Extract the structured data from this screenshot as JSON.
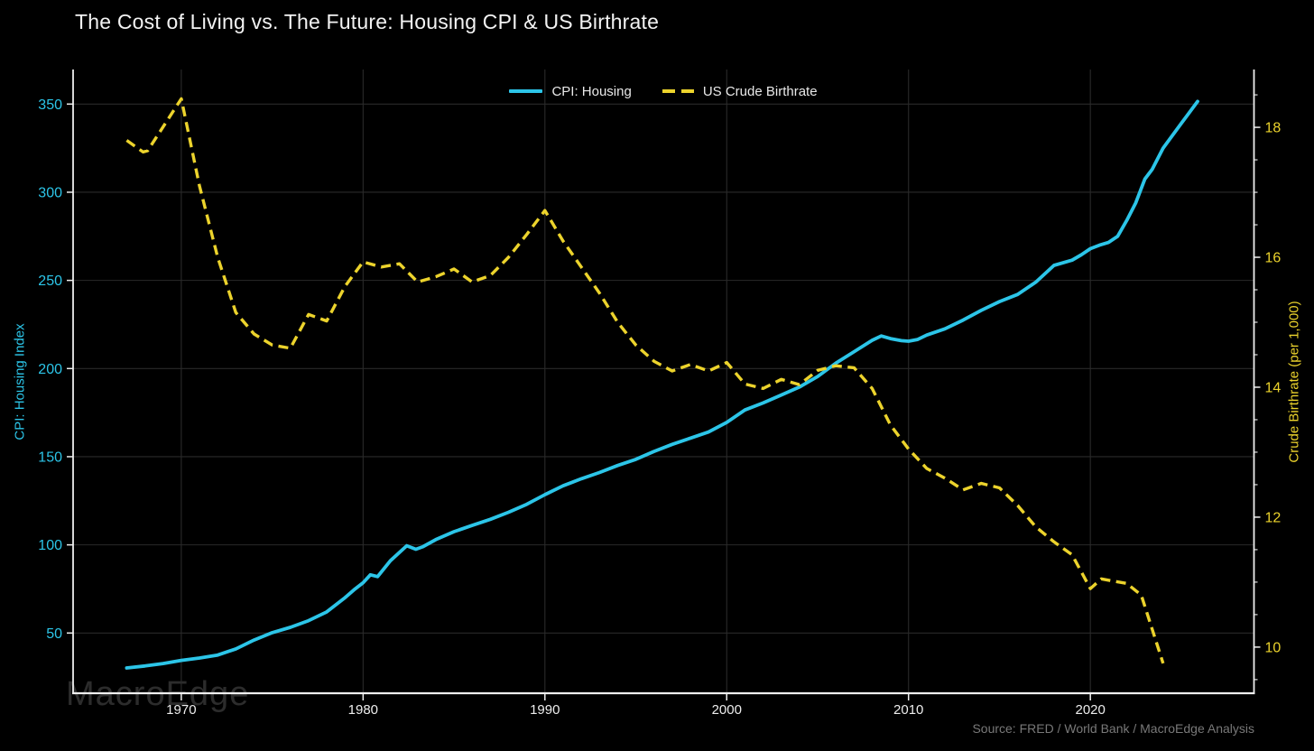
{
  "header": {
    "title": "The Cost of Living vs. The Future: Housing CPI & US Birthrate"
  },
  "footer": {
    "watermark": "MacroEdge",
    "source": "Source: FRED / World Bank / MacroEdge Analysis"
  },
  "colors": {
    "background": "#000000",
    "title": "#f3f3f3",
    "cyan": "#2cc5e8",
    "yellow": "#ecd32c",
    "grid": "#2a2a2a",
    "spine": "#efefef",
    "xtick": "#ededed",
    "legendtext": "#e9e9e9",
    "source": "#787878",
    "watermark": "#2c2c2c"
  },
  "chart_data": {
    "type": "line",
    "title": "The Cost of Living vs. The Future: Housing CPI & US Birthrate",
    "grid": true,
    "legend_position": "top-center",
    "x_range": [
      1964.05,
      2029.0
    ],
    "x_ticks": [
      1970,
      1980,
      1990,
      2000,
      2010,
      2020
    ],
    "left_axis": {
      "label": "CPI: Housing Index",
      "range": [
        15.85,
        369.6
      ],
      "ticks": [
        50,
        100,
        150,
        200,
        250,
        300,
        350
      ],
      "color": "#2cc5e8"
    },
    "right_axis": {
      "label": "Crude Birthrate (per 1,000)",
      "range": [
        9.29,
        18.89
      ],
      "ticks": [
        10,
        12,
        14,
        16,
        18
      ],
      "minor_tick_step": 0.5,
      "color": "#ecd32c"
    },
    "series": [
      {
        "name": "CPI: Housing",
        "axis": "left",
        "color": "#2cc5e8",
        "style": "solid",
        "points": [
          [
            1967,
            30.2
          ],
          [
            1968,
            31.3
          ],
          [
            1969,
            32.7
          ],
          [
            1970,
            34.5
          ],
          [
            1971,
            35.8
          ],
          [
            1972,
            37.5
          ],
          [
            1973,
            41
          ],
          [
            1974,
            46
          ],
          [
            1975,
            50.2
          ],
          [
            1976,
            53.2
          ],
          [
            1977,
            57
          ],
          [
            1978,
            62
          ],
          [
            1979,
            70
          ],
          [
            1979.5,
            74.5
          ],
          [
            1980,
            78.5
          ],
          [
            1980.4,
            83
          ],
          [
            1980.8,
            82
          ],
          [
            1981.5,
            91
          ],
          [
            1982.4,
            99.5
          ],
          [
            1982.9,
            97.5
          ],
          [
            1983.3,
            99
          ],
          [
            1984,
            103
          ],
          [
            1985,
            107.5
          ],
          [
            1986,
            111
          ],
          [
            1987,
            114.5
          ],
          [
            1988,
            118.5
          ],
          [
            1989,
            123
          ],
          [
            1990,
            128.5
          ],
          [
            1991,
            133.5
          ],
          [
            1992,
            137.5
          ],
          [
            1993,
            141
          ],
          [
            1994,
            145
          ],
          [
            1995,
            148.5
          ],
          [
            1996,
            153
          ],
          [
            1997,
            157
          ],
          [
            1998,
            160.5
          ],
          [
            1999,
            164
          ],
          [
            2000,
            169.5
          ],
          [
            2001,
            176.5
          ],
          [
            2002,
            180.5
          ],
          [
            2003,
            185
          ],
          [
            2004,
            189.5
          ],
          [
            2005,
            195.5
          ],
          [
            2006,
            203
          ],
          [
            2007,
            209.5
          ],
          [
            2008,
            216
          ],
          [
            2008.5,
            218.5
          ],
          [
            2009,
            217
          ],
          [
            2009.6,
            215.8
          ],
          [
            2010,
            215.5
          ],
          [
            2010.5,
            216.5
          ],
          [
            2011,
            219
          ],
          [
            2012,
            222.5
          ],
          [
            2013,
            227.5
          ],
          [
            2014,
            233
          ],
          [
            2015,
            238
          ],
          [
            2016,
            242
          ],
          [
            2017,
            249
          ],
          [
            2018,
            258.5
          ],
          [
            2019,
            261.5
          ],
          [
            2019.5,
            264.5
          ],
          [
            2020,
            268
          ],
          [
            2020.5,
            270
          ],
          [
            2021,
            271.5
          ],
          [
            2021.5,
            275
          ],
          [
            2022,
            284
          ],
          [
            2022.5,
            294
          ],
          [
            2023,
            307.5
          ],
          [
            2023.4,
            313
          ],
          [
            2024,
            325
          ],
          [
            2025,
            339
          ],
          [
            2025.9,
            351.5
          ]
        ]
      },
      {
        "name": "US Crude Birthrate",
        "axis": "right",
        "color": "#ecd32c",
        "style": "dashed",
        "points": [
          [
            1967,
            17.8
          ],
          [
            1967.9,
            17.62
          ],
          [
            1968.15,
            17.64
          ],
          [
            1970,
            18.44
          ],
          [
            1971,
            17.1
          ],
          [
            1972,
            16.0
          ],
          [
            1973,
            15.15
          ],
          [
            1974,
            14.82
          ],
          [
            1975,
            14.65
          ],
          [
            1976,
            14.6
          ],
          [
            1977,
            15.12
          ],
          [
            1978,
            15.02
          ],
          [
            1979,
            15.55
          ],
          [
            1980,
            15.93
          ],
          [
            1981,
            15.85
          ],
          [
            1982,
            15.9
          ],
          [
            1983,
            15.62
          ],
          [
            1984,
            15.7
          ],
          [
            1985,
            15.82
          ],
          [
            1986,
            15.62
          ],
          [
            1987,
            15.72
          ],
          [
            1988,
            16.0
          ],
          [
            1989,
            16.35
          ],
          [
            1990,
            16.72
          ],
          [
            1991,
            16.25
          ],
          [
            1992,
            15.85
          ],
          [
            1993,
            15.45
          ],
          [
            1994,
            15.0
          ],
          [
            1995,
            14.65
          ],
          [
            1996,
            14.4
          ],
          [
            1997,
            14.25
          ],
          [
            1998,
            14.35
          ],
          [
            1999,
            14.25
          ],
          [
            2000,
            14.38
          ],
          [
            2001,
            14.05
          ],
          [
            2002,
            13.98
          ],
          [
            2003,
            14.12
          ],
          [
            2004,
            14.04
          ],
          [
            2005,
            14.26
          ],
          [
            2006,
            14.33
          ],
          [
            2007,
            14.3
          ],
          [
            2008,
            13.98
          ],
          [
            2009,
            13.42
          ],
          [
            2010,
            13.05
          ],
          [
            2011,
            12.75
          ],
          [
            2012,
            12.6
          ],
          [
            2013,
            12.42
          ],
          [
            2014,
            12.52
          ],
          [
            2015,
            12.45
          ],
          [
            2016,
            12.18
          ],
          [
            2017,
            11.85
          ],
          [
            2018,
            11.62
          ],
          [
            2019,
            11.42
          ],
          [
            2020,
            10.9
          ],
          [
            2020.6,
            11.05
          ],
          [
            2021,
            11.03
          ],
          [
            2022,
            10.98
          ],
          [
            2022.8,
            10.8
          ],
          [
            2024,
            9.75
          ]
        ]
      }
    ]
  }
}
